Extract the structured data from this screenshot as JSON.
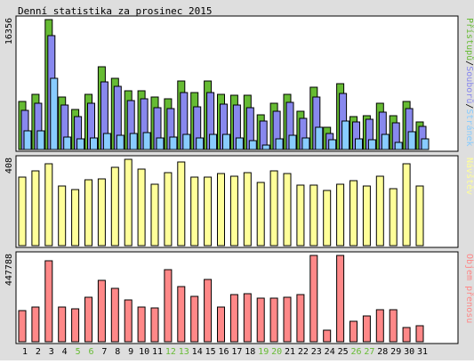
{
  "title": "Denní statistika za prosinec 2015",
  "colors": {
    "hits": "#66bb33",
    "files": "#8888ee",
    "pages": "#88ccff",
    "visits": "#ffff99",
    "kbytes": "#ff8888",
    "weekend_day": "#66bb33",
    "frame_bg": "#dedede",
    "panel_bg": "#ffffff"
  },
  "chart_data": [
    {
      "type": "bar",
      "panel": "hits-files-pages",
      "ymax_label": "16356",
      "ylim": [
        0,
        16356
      ],
      "legend_side_label": [
        "Přístupů",
        "Souborů",
        "Stránek"
      ],
      "categories": [
        "1",
        "2",
        "3",
        "4",
        "5",
        "6",
        "7",
        "8",
        "9",
        "10",
        "11",
        "12",
        "13",
        "14",
        "15",
        "16",
        "17",
        "18",
        "19",
        "20",
        "21",
        "22",
        "23",
        "24",
        "25",
        "26",
        "27",
        "28",
        "29",
        "30",
        "31"
      ],
      "weekend": [
        "5",
        "6",
        "12",
        "13",
        "19",
        "20",
        "26",
        "27"
      ],
      "series": [
        {
          "name": "Přístupů",
          "values": [
            6000,
            6900,
            16356,
            6600,
            5000,
            6900,
            10400,
            9000,
            7400,
            7400,
            6600,
            6400,
            8600,
            7200,
            8600,
            7000,
            6800,
            6800,
            4400,
            5800,
            7000,
            4800,
            7800,
            2800,
            8300,
            4100,
            4300,
            5800,
            4300,
            6000,
            3500
          ]
        },
        {
          "name": "Souborů",
          "values": [
            4900,
            5800,
            14300,
            5600,
            4100,
            5800,
            8500,
            8000,
            6200,
            6400,
            5300,
            5200,
            7200,
            5400,
            7200,
            5700,
            5600,
            5300,
            3600,
            4800,
            5900,
            3900,
            6600,
            2000,
            7100,
            3500,
            3800,
            4700,
            3400,
            5100,
            2900
          ]
        },
        {
          "name": "Stránek",
          "values": [
            2400,
            2400,
            9000,
            1600,
            1400,
            1500,
            2000,
            1800,
            2000,
            2100,
            1500,
            1600,
            1900,
            1500,
            1900,
            1900,
            1500,
            1100,
            600,
            1400,
            1800,
            1500,
            2800,
            1200,
            3600,
            1300,
            1200,
            1900,
            900,
            2200,
            1400
          ]
        }
      ]
    },
    {
      "type": "bar",
      "panel": "visits",
      "ymax_label": "408",
      "ylim": [
        0,
        408
      ],
      "legend_side_label": [
        "Návštěv"
      ],
      "categories": [
        "1",
        "2",
        "3",
        "4",
        "5",
        "6",
        "7",
        "8",
        "9",
        "10",
        "11",
        "12",
        "13",
        "14",
        "15",
        "16",
        "17",
        "18",
        "19",
        "20",
        "21",
        "22",
        "23",
        "24",
        "25",
        "26",
        "27",
        "28",
        "29",
        "30",
        "31"
      ],
      "series": [
        {
          "name": "Návštěv",
          "values": [
            322,
            352,
            388,
            283,
            264,
            310,
            314,
            372,
            408,
            362,
            290,
            343,
            397,
            325,
            325,
            342,
            330,
            345,
            297,
            352,
            342,
            288,
            288,
            260,
            290,
            305,
            282,
            329,
            268,
            388,
            282
          ]
        }
      ]
    },
    {
      "type": "bar",
      "panel": "kbytes",
      "ymax_label": "447788",
      "ylim": [
        0,
        447788
      ],
      "legend_side_label": [
        "Objem přenosu"
      ],
      "categories": [
        "1",
        "2",
        "3",
        "4",
        "5",
        "6",
        "7",
        "8",
        "9",
        "10",
        "11",
        "12",
        "13",
        "14",
        "15",
        "16",
        "17",
        "18",
        "19",
        "20",
        "21",
        "22",
        "23",
        "24",
        "25",
        "26",
        "27",
        "28",
        "29",
        "30",
        "31"
      ],
      "series": [
        {
          "name": "Objem přenosu",
          "values": [
            162000,
            178000,
            418000,
            182000,
            170000,
            232000,
            318000,
            278000,
            218000,
            182000,
            175000,
            375000,
            286000,
            234000,
            324000,
            182000,
            245000,
            248000,
            228000,
            227000,
            232000,
            245000,
            447788,
            60000,
            447788,
            106000,
            134000,
            165000,
            165000,
            76000,
            85000
          ]
        }
      ]
    }
  ]
}
